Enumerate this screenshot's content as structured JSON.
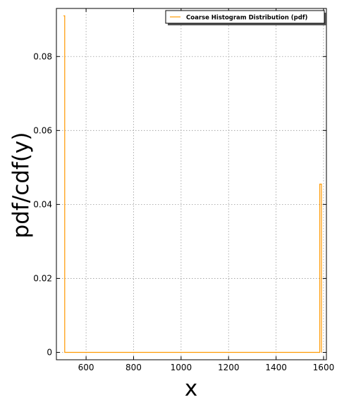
{
  "chart_data": {
    "type": "line",
    "title": "",
    "xlabel": "x",
    "ylabel": "pdf/cdf(y)",
    "xlim": [
      475,
      1612
    ],
    "ylim": [
      -0.002,
      0.093
    ],
    "xticks": [
      600,
      800,
      1000,
      1200,
      1400,
      1600
    ],
    "yticks": [
      0,
      0.02,
      0.04,
      0.06,
      0.08
    ],
    "ytick_labels": [
      "0",
      "0.02",
      "0.04",
      "0.06",
      "0.08"
    ],
    "grid": true,
    "legend_position": "top-right",
    "series": [
      {
        "name": "Coarse Histogram Distribution (pdf)",
        "color": "#ff9900",
        "style": "steps",
        "x": [
          505,
          505,
          510,
          510,
          1584,
          1584,
          1591,
          1591
        ],
        "y": [
          0.091,
          0.091,
          0.091,
          0,
          0,
          0.0455,
          0.0455,
          0
        ]
      }
    ]
  }
}
